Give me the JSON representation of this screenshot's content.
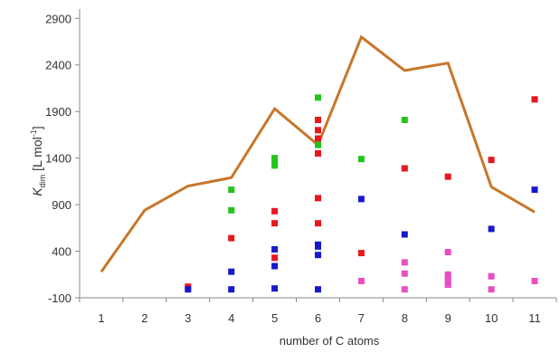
{
  "chart_data": {
    "type": "scatter",
    "xlabel": "number of C atoms",
    "ylabel": {
      "symbol": "K",
      "subscript": "dim",
      "unit_open": " [L mol",
      "unit_exp": "-1",
      "unit_close": "]"
    },
    "xlim": [
      0.5,
      11.5
    ],
    "ylim": [
      -100,
      3000
    ],
    "x_ticks": [
      1,
      2,
      3,
      4,
      5,
      6,
      7,
      8,
      9,
      10,
      11
    ],
    "y_ticks": [
      -100,
      400,
      900,
      1400,
      1900,
      2400,
      2900
    ],
    "grid": false,
    "legend": "none",
    "line_series": {
      "color": "#c8762a",
      "points": [
        [
          1,
          180
        ],
        [
          2,
          840
        ],
        [
          3,
          1100
        ],
        [
          4,
          1190
        ],
        [
          5,
          1930
        ],
        [
          6,
          1540
        ],
        [
          7,
          2700
        ],
        [
          8,
          2340
        ],
        [
          9,
          2420
        ],
        [
          10,
          1090
        ],
        [
          11,
          820
        ]
      ]
    },
    "series": [
      {
        "color": "#e8161d",
        "points": [
          [
            3,
            20
          ],
          [
            4,
            540
          ],
          [
            5,
            330
          ],
          [
            5,
            700
          ],
          [
            5,
            830
          ],
          [
            6,
            700
          ],
          [
            6,
            970
          ],
          [
            6,
            1450
          ],
          [
            6,
            1610
          ],
          [
            6,
            1700
          ],
          [
            6,
            1810
          ],
          [
            7,
            380
          ],
          [
            8,
            1290
          ],
          [
            9,
            1200
          ],
          [
            10,
            1380
          ],
          [
            11,
            2030
          ]
        ]
      },
      {
        "color": "#22c41c",
        "points": [
          [
            4,
            840
          ],
          [
            4,
            1060
          ],
          [
            5,
            1320
          ],
          [
            5,
            1360
          ],
          [
            5,
            1400
          ],
          [
            6,
            1540
          ],
          [
            6,
            2050
          ],
          [
            7,
            1390
          ],
          [
            8,
            1810
          ]
        ]
      },
      {
        "color": "#1719c9",
        "points": [
          [
            3,
            -10
          ],
          [
            4,
            -10
          ],
          [
            4,
            180
          ],
          [
            5,
            0
          ],
          [
            5,
            240
          ],
          [
            5,
            420
          ],
          [
            6,
            -10
          ],
          [
            6,
            360
          ],
          [
            6,
            450
          ],
          [
            6,
            470
          ],
          [
            7,
            960
          ],
          [
            8,
            580
          ],
          [
            10,
            640
          ],
          [
            11,
            1060
          ]
        ]
      },
      {
        "color": "#e84fc4",
        "points": [
          [
            7,
            80
          ],
          [
            8,
            -10
          ],
          [
            8,
            160
          ],
          [
            8,
            280
          ],
          [
            9,
            40
          ],
          [
            9,
            70
          ],
          [
            9,
            90
          ],
          [
            9,
            120
          ],
          [
            9,
            150
          ],
          [
            9,
            390
          ],
          [
            10,
            -10
          ],
          [
            10,
            130
          ],
          [
            11,
            80
          ]
        ]
      }
    ]
  }
}
